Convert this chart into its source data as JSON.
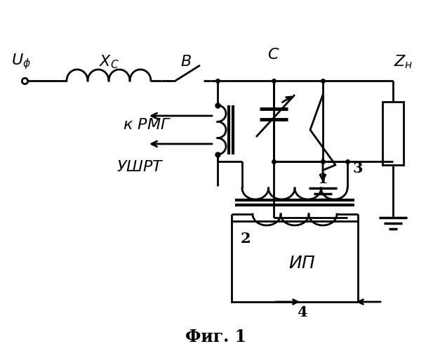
{
  "title": "Фиг. 1",
  "background_color": "#ffffff",
  "line_color": "#000000",
  "figsize": [
    6.17,
    5.0
  ],
  "dpi": 100,
  "lw": 2.0
}
